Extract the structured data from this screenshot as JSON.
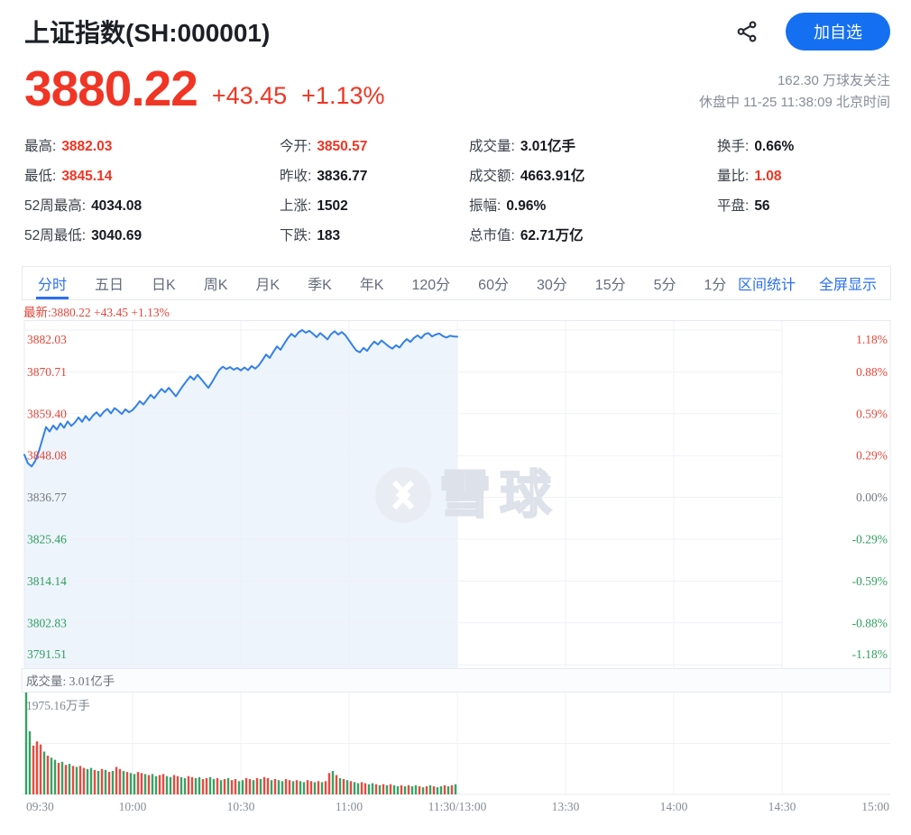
{
  "header": {
    "title": "上证指数(SH:000001)",
    "add_watchlist_label": "加自选",
    "icons": [
      "share-icon"
    ]
  },
  "quote": {
    "price": "3880.22",
    "change": "+43.45",
    "change_pct": "+1.13%",
    "followers": "162.30 万球友关注",
    "status_line": "休盘中 11-25 11:38:09 北京时间"
  },
  "stats": {
    "cells": [
      {
        "label": "最高:",
        "value": "3882.03",
        "red": true
      },
      {
        "label": "今开:",
        "value": "3850.57",
        "red": true
      },
      {
        "label": "成交量:",
        "value": "3.01亿手",
        "red": false
      },
      {
        "label": "换手:",
        "value": "0.66%",
        "red": false
      },
      {
        "label": "最低:",
        "value": "3845.14",
        "red": true
      },
      {
        "label": "昨收:",
        "value": "3836.77",
        "red": false
      },
      {
        "label": "成交额:",
        "value": "4663.91亿",
        "red": false
      },
      {
        "label": "量比:",
        "value": "1.08",
        "red": true
      },
      {
        "label": "52周最高:",
        "value": "4034.08",
        "red": false
      },
      {
        "label": "上涨:",
        "value": "1502",
        "red": false
      },
      {
        "label": "振幅:",
        "value": "0.96%",
        "red": false
      },
      {
        "label": "平盘:",
        "value": "56",
        "red": false
      },
      {
        "label": "52周最低:",
        "value": "3040.69",
        "red": false
      },
      {
        "label": "下跌:",
        "value": "183",
        "red": false
      },
      {
        "label": "总市值:",
        "value": "62.71万亿",
        "red": false
      }
    ]
  },
  "tabbar": {
    "tabs": [
      "分时",
      "五日",
      "日K",
      "周K",
      "月K",
      "季K",
      "年K",
      "120分",
      "60分",
      "30分",
      "15分",
      "5分",
      "1分"
    ],
    "active_index": 0,
    "range_stats": "区间统计",
    "fullscreen": "全屏显示"
  },
  "colors": {
    "red": "#f03524",
    "axis_red": "#e2463a",
    "green": "#2f9e5e",
    "bar_red": "#e8493f",
    "bar_green": "#36a266",
    "blue": "#2b6ff0",
    "line": "#3380e8",
    "fill": "#edf4fc",
    "grid": "#eff1f5",
    "border": "#e8eaef",
    "gray": "#81878f",
    "axis_gray": "#74797f"
  },
  "chart_data": {
    "type": "line",
    "latest_label": "最新:3880.22 +43.45 +1.13%",
    "watermark": "雪球",
    "prev_close": 3836.77,
    "axis_top_value": 3882.03,
    "axis_step_value": 11.315,
    "price_axis_left": [
      "3882.03",
      "3870.71",
      "3859.40",
      "3848.08",
      "3836.77",
      "3825.46",
      "3814.14",
      "3802.83",
      "3791.51"
    ],
    "pct_axis_right": [
      "1.18%",
      "0.88%",
      "0.59%",
      "0.29%",
      "0.00%",
      "-0.29%",
      "-0.59%",
      "-0.88%",
      "-1.18%"
    ],
    "x_ticks": [
      "09:30",
      "10:00",
      "10:30",
      "11:00",
      "11:30/13:00",
      "13:30",
      "14:00",
      "14:30",
      "15:00"
    ],
    "session_minutes_total": 240,
    "prices": [
      3848.3,
      3846.0,
      3845.14,
      3846.6,
      3849.2,
      3852.5,
      3855.8,
      3854.6,
      3856.2,
      3855.1,
      3856.8,
      3855.6,
      3857.3,
      3856.1,
      3857.0,
      3858.4,
      3857.2,
      3858.8,
      3857.6,
      3858.9,
      3859.8,
      3858.7,
      3859.9,
      3860.7,
      3859.5,
      3860.9,
      3860.2,
      3859.3,
      3860.6,
      3859.8,
      3860.4,
      3861.5,
      3862.8,
      3861.9,
      3863.2,
      3864.5,
      3863.6,
      3864.9,
      3866.1,
      3865.2,
      3866.4,
      3865.3,
      3864.1,
      3865.6,
      3867.0,
      3868.3,
      3869.5,
      3868.6,
      3869.9,
      3868.8,
      3867.6,
      3866.4,
      3867.9,
      3869.6,
      3871.2,
      3872.1,
      3871.5,
      3872.0,
      3871.3,
      3871.8,
      3871.1,
      3871.9,
      3871.2,
      3872.3,
      3871.6,
      3872.5,
      3873.9,
      3875.4,
      3874.5,
      3876.1,
      3877.6,
      3876.7,
      3878.3,
      3879.8,
      3881.0,
      3880.2,
      3881.4,
      3882.03,
      3881.3,
      3881.8,
      3881.0,
      3880.1,
      3881.2,
      3880.4,
      3879.5,
      3880.9,
      3881.7,
      3880.8,
      3881.5,
      3880.6,
      3879.2,
      3877.8,
      3876.5,
      3876.0,
      3877.2,
      3876.4,
      3877.8,
      3878.9,
      3878.1,
      3879.2,
      3878.4,
      3877.6,
      3877.0,
      3877.9,
      3877.3,
      3878.6,
      3879.6,
      3878.8,
      3879.9,
      3880.6,
      3879.8,
      3880.9,
      3881.2,
      3880.3,
      3880.8,
      3881.1,
      3880.4,
      3880.0,
      3880.5,
      3880.3,
      3880.22
    ],
    "volume": {
      "pane_label": "成交量: 3.01亿手",
      "axis_max_label": "1975.16万手",
      "bars": [
        [
          100,
          "g"
        ],
        [
          62,
          "g"
        ],
        [
          48,
          "r"
        ],
        [
          52,
          "r"
        ],
        [
          49,
          "r"
        ],
        [
          42,
          "g"
        ],
        [
          38,
          "r"
        ],
        [
          36,
          "g"
        ],
        [
          34,
          "g"
        ],
        [
          31,
          "r"
        ],
        [
          32,
          "g"
        ],
        [
          29,
          "r"
        ],
        [
          30,
          "g"
        ],
        [
          28,
          "r"
        ],
        [
          27,
          "g"
        ],
        [
          28,
          "r"
        ],
        [
          26,
          "r"
        ],
        [
          25,
          "g"
        ],
        [
          26,
          "g"
        ],
        [
          24,
          "r"
        ],
        [
          23,
          "g"
        ],
        [
          25,
          "r"
        ],
        [
          24,
          "g"
        ],
        [
          22,
          "r"
        ],
        [
          23,
          "g"
        ],
        [
          27,
          "r"
        ],
        [
          25,
          "r"
        ],
        [
          23,
          "g"
        ],
        [
          22,
          "r"
        ],
        [
          21,
          "g"
        ],
        [
          20,
          "g"
        ],
        [
          22,
          "r"
        ],
        [
          21,
          "r"
        ],
        [
          20,
          "g"
        ],
        [
          19,
          "r"
        ],
        [
          20,
          "g"
        ],
        [
          18,
          "g"
        ],
        [
          19,
          "r"
        ],
        [
          20,
          "r"
        ],
        [
          18,
          "g"
        ],
        [
          17,
          "g"
        ],
        [
          19,
          "r"
        ],
        [
          18,
          "r"
        ],
        [
          17,
          "g"
        ],
        [
          16,
          "g"
        ],
        [
          18,
          "r"
        ],
        [
          17,
          "r"
        ],
        [
          16,
          "g"
        ],
        [
          17,
          "g"
        ],
        [
          15,
          "r"
        ],
        [
          16,
          "r"
        ],
        [
          17,
          "g"
        ],
        [
          15,
          "g"
        ],
        [
          16,
          "r"
        ],
        [
          14,
          "g"
        ],
        [
          15,
          "r"
        ],
        [
          16,
          "g"
        ],
        [
          14,
          "r"
        ],
        [
          15,
          "r"
        ],
        [
          13,
          "g"
        ],
        [
          14,
          "g"
        ],
        [
          16,
          "r"
        ],
        [
          15,
          "r"
        ],
        [
          14,
          "g"
        ],
        [
          16,
          "r"
        ],
        [
          15,
          "g"
        ],
        [
          17,
          "r"
        ],
        [
          16,
          "r"
        ],
        [
          14,
          "g"
        ],
        [
          15,
          "r"
        ],
        [
          14,
          "g"
        ],
        [
          13,
          "g"
        ],
        [
          15,
          "r"
        ],
        [
          14,
          "r"
        ],
        [
          13,
          "g"
        ],
        [
          14,
          "r"
        ],
        [
          13,
          "g"
        ],
        [
          12,
          "g"
        ],
        [
          14,
          "r"
        ],
        [
          13,
          "r"
        ],
        [
          12,
          "g"
        ],
        [
          13,
          "r"
        ],
        [
          12,
          "g"
        ],
        [
          13,
          "r"
        ],
        [
          21,
          "r"
        ],
        [
          23,
          "g"
        ],
        [
          19,
          "r"
        ],
        [
          16,
          "g"
        ],
        [
          15,
          "r"
        ],
        [
          14,
          "g"
        ],
        [
          13,
          "r"
        ],
        [
          12,
          "g"
        ],
        [
          11,
          "g"
        ],
        [
          12,
          "r"
        ],
        [
          11,
          "r"
        ],
        [
          10,
          "g"
        ],
        [
          11,
          "g"
        ],
        [
          10,
          "r"
        ],
        [
          9,
          "g"
        ],
        [
          10,
          "r"
        ],
        [
          9,
          "g"
        ],
        [
          10,
          "r"
        ],
        [
          9,
          "g"
        ],
        [
          8,
          "g"
        ],
        [
          9,
          "r"
        ],
        [
          8,
          "g"
        ],
        [
          9,
          "r"
        ],
        [
          8,
          "g"
        ],
        [
          9,
          "g"
        ],
        [
          8,
          "r"
        ],
        [
          7,
          "g"
        ],
        [
          8,
          "r"
        ],
        [
          9,
          "g"
        ],
        [
          8,
          "r"
        ],
        [
          7,
          "g"
        ],
        [
          8,
          "g"
        ],
        [
          9,
          "r"
        ],
        [
          8,
          "g"
        ],
        [
          9,
          "r"
        ],
        [
          10,
          "g"
        ]
      ]
    }
  }
}
